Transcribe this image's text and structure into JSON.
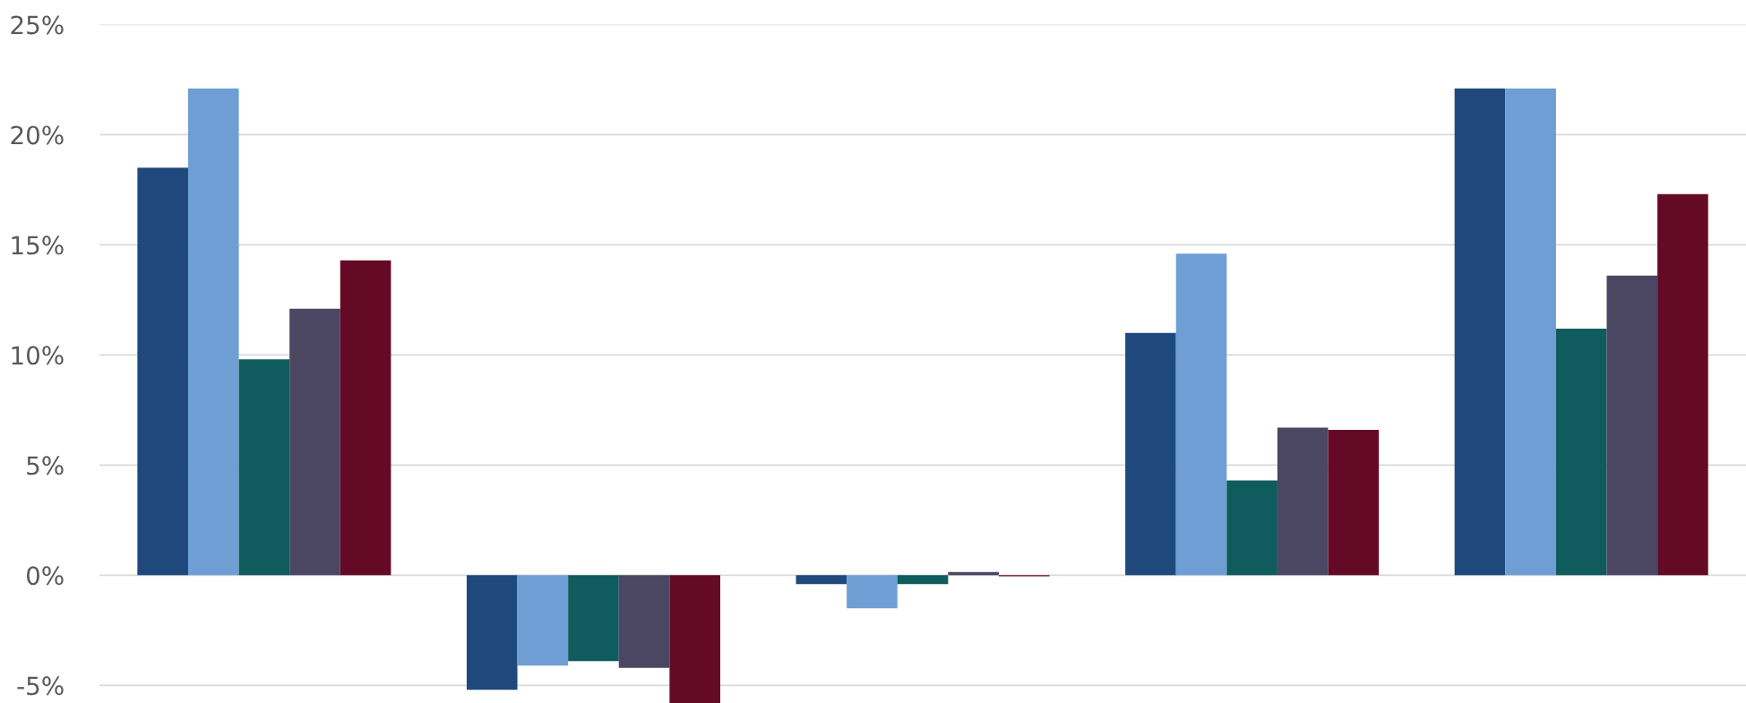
{
  "chart_data": {
    "type": "bar",
    "categories": [
      null,
      null,
      null,
      null,
      null
    ],
    "series": [
      {
        "color": "#1f497d",
        "values": [
          18.5,
          -5.2,
          -0.4,
          11.0,
          22.1
        ]
      },
      {
        "color": "#6f9ed5",
        "values": [
          22.1,
          -4.1,
          -1.5,
          14.6,
          22.1
        ]
      },
      {
        "color": "#0f5b5d",
        "values": [
          9.8,
          -3.9,
          -0.4,
          4.3,
          11.2
        ]
      },
      {
        "color": "#4b4662",
        "values": [
          12.1,
          -4.2,
          0.15,
          6.7,
          13.6
        ]
      },
      {
        "color": "#650a26",
        "values": [
          14.3,
          -5.8,
          -0.05,
          6.6,
          17.3
        ]
      }
    ],
    "ylim": [
      -5.8,
      25
    ],
    "yticks": [
      {
        "value": -5,
        "label": "-5%"
      },
      {
        "value": 0,
        "label": "0%"
      },
      {
        "value": 5,
        "label": "5%"
      },
      {
        "value": 10,
        "label": "10%"
      },
      {
        "value": 15,
        "label": "15%"
      },
      {
        "value": 20,
        "label": "20%"
      },
      {
        "value": 25,
        "label": "25%"
      }
    ],
    "grid": "y",
    "tick_labels": "y"
  }
}
